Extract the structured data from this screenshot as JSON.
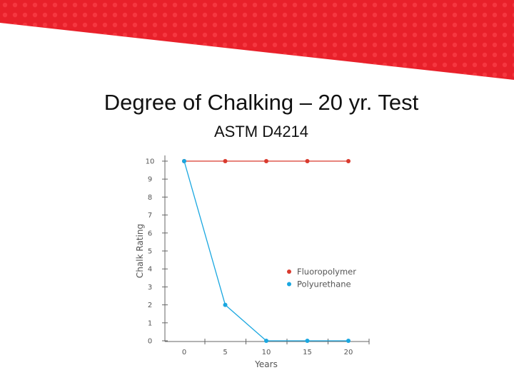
{
  "slide": {
    "title": "Degree of Chalking – 20 yr. Test",
    "subtitle": "ASTM D4214",
    "accent_color": "#e8202a"
  },
  "chart_data": {
    "type": "line",
    "x": [
      0,
      5,
      10,
      15,
      20
    ],
    "xlabel": "Years",
    "ylabel": "Chalk Rating",
    "xlim": [
      0,
      20
    ],
    "ylim": [
      0,
      10
    ],
    "x_ticks": [
      "0",
      "5",
      "10",
      "15",
      "20"
    ],
    "y_ticks": [
      "0",
      "1",
      "2",
      "3",
      "4",
      "5",
      "6",
      "7",
      "8",
      "9",
      "10"
    ],
    "grid": false,
    "legend_position": "center-right",
    "series": [
      {
        "name": "Fluoropolymer",
        "values": [
          10,
          10,
          10,
          10,
          10
        ],
        "color": "#d93a2e"
      },
      {
        "name": "Polyurethane",
        "values": [
          10,
          2,
          0,
          0,
          0
        ],
        "color": "#1aa7e0"
      }
    ]
  }
}
